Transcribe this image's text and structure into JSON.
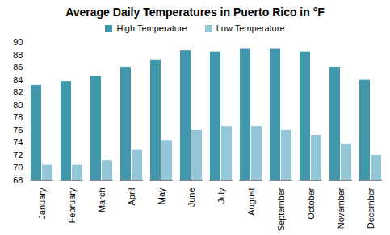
{
  "chart_data": {
    "type": "bar",
    "title": "Average Daily Temperatures in Puerto Rico in °F",
    "categories": [
      "January",
      "February",
      "March",
      "April",
      "May",
      "June",
      "July",
      "August",
      "September",
      "October",
      "November",
      "December"
    ],
    "series": [
      {
        "name": "High Temperature",
        "color": "#4197ab",
        "values": [
          83.2,
          83.8,
          84.6,
          86,
          87.2,
          88.7,
          88.5,
          88.9,
          88.9,
          88.5,
          86,
          84
        ]
      },
      {
        "name": "Low Temperature",
        "color": "#93c6d6",
        "values": [
          70.5,
          70.5,
          71.2,
          72.8,
          74.4,
          76,
          76.6,
          76.6,
          76,
          75.2,
          73.8,
          72
        ]
      }
    ],
    "ylim": [
      68,
      90
    ],
    "yticks": [
      68,
      70,
      72,
      74,
      76,
      78,
      80,
      82,
      84,
      86,
      88,
      90
    ],
    "grid": false,
    "legend": "top"
  }
}
